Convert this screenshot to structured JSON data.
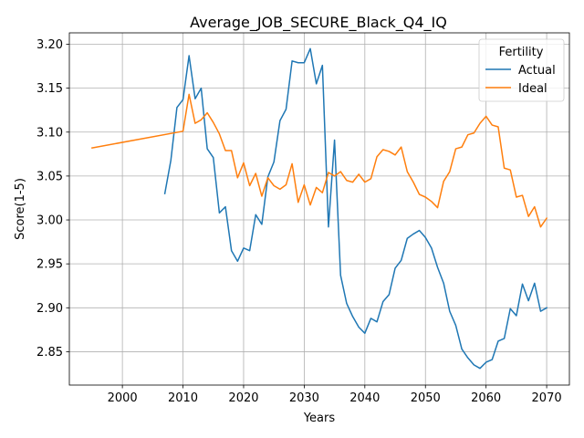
{
  "chart_data": {
    "type": "line",
    "title": "Average_JOB_SECURE_Black_Q4_IQ",
    "xlabel": "Years",
    "ylabel": "Score(1-5)",
    "xlim": [
      1991.25,
      2073.75
    ],
    "ylim": [
      2.812,
      3.213
    ],
    "x_ticks": [
      2000,
      2010,
      2020,
      2030,
      2040,
      2050,
      2060,
      2070
    ],
    "y_ticks": [
      2.85,
      2.9,
      2.95,
      3.0,
      3.05,
      3.1,
      3.15,
      3.2
    ],
    "y_tick_labels": [
      "2.85",
      "2.90",
      "2.95",
      "3.00",
      "3.05",
      "3.10",
      "3.15",
      "3.20"
    ],
    "grid": true,
    "legend": {
      "title": "Fertility",
      "position": "top-right"
    },
    "series": [
      {
        "name": "Actual",
        "color": "#1f77b4",
        "x": [
          2007,
          2008,
          2009,
          2010,
          2011,
          2012,
          2013,
          2014,
          2015,
          2016,
          2017,
          2018,
          2019,
          2020,
          2021,
          2022,
          2023,
          2024,
          2025,
          2026,
          2027,
          2028,
          2029,
          2030,
          2031,
          2032,
          2033,
          2034,
          2035,
          2036,
          2037,
          2038,
          2039,
          2040,
          2041,
          2042,
          2043,
          2044,
          2045,
          2046,
          2047,
          2048,
          2049,
          2050,
          2051,
          2052,
          2053,
          2054,
          2055,
          2056,
          2057,
          2058,
          2059,
          2060,
          2061,
          2062,
          2063,
          2064,
          2065,
          2066,
          2067,
          2068,
          2069,
          2070
        ],
        "y": [
          3.03,
          3.068,
          3.128,
          3.137,
          3.187,
          3.138,
          3.15,
          3.081,
          3.071,
          3.008,
          3.015,
          2.965,
          2.953,
          2.968,
          2.965,
          3.006,
          2.995,
          3.049,
          3.066,
          3.113,
          3.126,
          3.181,
          3.179,
          3.179,
          3.195,
          3.155,
          3.176,
          2.992,
          3.091,
          2.937,
          2.905,
          2.89,
          2.878,
          2.871,
          2.888,
          2.884,
          2.907,
          2.915,
          2.945,
          2.954,
          2.979,
          2.984,
          2.988,
          2.98,
          2.968,
          2.946,
          2.928,
          2.896,
          2.88,
          2.853,
          2.843,
          2.835,
          2.831,
          2.838,
          2.841,
          2.862,
          2.865,
          2.899,
          2.891,
          2.927,
          2.908,
          2.928,
          2.896,
          2.9
        ]
      },
      {
        "name": "Ideal",
        "color": "#ff7f0e",
        "x": [
          1995,
          2010,
          2011,
          2012,
          2013,
          2014,
          2015,
          2016,
          2017,
          2018,
          2019,
          2020,
          2021,
          2022,
          2023,
          2024,
          2025,
          2026,
          2027,
          2028,
          2029,
          2030,
          2031,
          2032,
          2033,
          2034,
          2035,
          2036,
          2037,
          2038,
          2039,
          2040,
          2041,
          2042,
          2043,
          2044,
          2045,
          2046,
          2047,
          2048,
          2049,
          2050,
          2051,
          2052,
          2053,
          2054,
          2055,
          2056,
          2057,
          2058,
          2059,
          2060,
          2061,
          2062,
          2063,
          2064,
          2065,
          2066,
          2067,
          2068,
          2069,
          2070
        ],
        "y": [
          3.082,
          3.101,
          3.143,
          3.11,
          3.114,
          3.122,
          3.111,
          3.098,
          3.079,
          3.079,
          3.048,
          3.065,
          3.039,
          3.053,
          3.027,
          3.048,
          3.039,
          3.035,
          3.04,
          3.064,
          3.02,
          3.04,
          3.017,
          3.037,
          3.031,
          3.054,
          3.05,
          3.055,
          3.045,
          3.043,
          3.052,
          3.043,
          3.047,
          3.072,
          3.08,
          3.078,
          3.074,
          3.083,
          3.055,
          3.043,
          3.029,
          3.026,
          3.021,
          3.014,
          3.044,
          3.055,
          3.081,
          3.083,
          3.097,
          3.099,
          3.11,
          3.118,
          3.108,
          3.106,
          3.059,
          3.057,
          3.026,
          3.028,
          3.004,
          3.015,
          2.992,
          3.002
        ]
      }
    ]
  }
}
